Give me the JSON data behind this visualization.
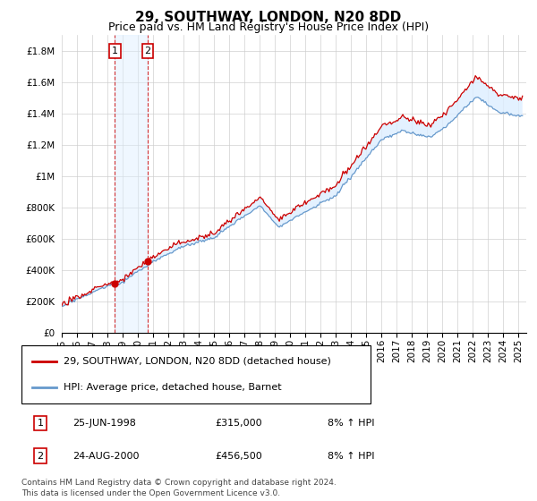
{
  "title": "29, SOUTHWAY, LONDON, N20 8DD",
  "subtitle": "Price paid vs. HM Land Registry's House Price Index (HPI)",
  "ylabel_ticks": [
    "£0",
    "£200K",
    "£400K",
    "£600K",
    "£800K",
    "£1M",
    "£1.2M",
    "£1.4M",
    "£1.6M",
    "£1.8M"
  ],
  "ytick_values": [
    0,
    200000,
    400000,
    600000,
    800000,
    1000000,
    1200000,
    1400000,
    1600000,
    1800000
  ],
  "ylim": [
    0,
    1900000
  ],
  "xlim_start": 1995.0,
  "xlim_end": 2025.5,
  "sale1_date": 1998.484,
  "sale1_price": 315000,
  "sale2_date": 2000.644,
  "sale2_price": 456500,
  "legend_line1": "29, SOUTHWAY, LONDON, N20 8DD (detached house)",
  "legend_line2": "HPI: Average price, detached house, Barnet",
  "annotation1_label": "1",
  "annotation1_date": "25-JUN-1998",
  "annotation1_price": "£315,000",
  "annotation1_hpi": "8% ↑ HPI",
  "annotation2_label": "2",
  "annotation2_date": "24-AUG-2000",
  "annotation2_price": "£456,500",
  "annotation2_hpi": "8% ↑ HPI",
  "footer": "Contains HM Land Registry data © Crown copyright and database right 2024.\nThis data is licensed under the Open Government Licence v3.0.",
  "line_color_red": "#cc0000",
  "line_color_blue": "#6699cc",
  "shade_color": "#ddeeff",
  "grid_color": "#cccccc",
  "title_fontsize": 11,
  "subtitle_fontsize": 9,
  "tick_fontsize": 7.5,
  "legend_fontsize": 8,
  "annotation_fontsize": 8,
  "footer_fontsize": 6.5
}
